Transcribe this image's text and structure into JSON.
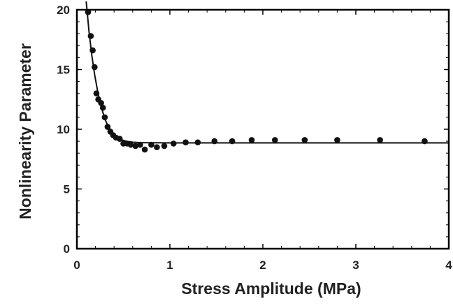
{
  "chart_data": {
    "type": "scatter",
    "title": "",
    "xlabel": "Stress Amplitude (MPa)",
    "ylabel": "Nonlinearity Parameter",
    "xlim": [
      0,
      4
    ],
    "ylim": [
      0,
      20
    ],
    "xticks": [
      0,
      1,
      2,
      3,
      4
    ],
    "yticks": [
      0,
      5,
      10,
      15,
      20
    ],
    "grid": false,
    "legend": "none",
    "colors": {
      "marker": "#111111",
      "line": "#111111",
      "axes": "#000000",
      "background": "#ffffff"
    },
    "series": [
      {
        "kind": "markers",
        "x": [
          0.12,
          0.15,
          0.17,
          0.19,
          0.21,
          0.23,
          0.26,
          0.28,
          0.3,
          0.33,
          0.36,
          0.39,
          0.42,
          0.46,
          0.5,
          0.54,
          0.58,
          0.63,
          0.68,
          0.73,
          0.8,
          0.86,
          0.94,
          1.04,
          1.17,
          1.3,
          1.48,
          1.67,
          1.88,
          2.13,
          2.45,
          2.8,
          3.26,
          3.74
        ],
        "y": [
          19.8,
          17.8,
          16.6,
          15.2,
          13.0,
          12.5,
          12.2,
          11.8,
          11.0,
          10.2,
          9.8,
          9.5,
          9.3,
          9.2,
          8.8,
          8.8,
          8.7,
          8.6,
          8.7,
          8.3,
          8.7,
          8.5,
          8.6,
          8.8,
          8.9,
          8.9,
          9.0,
          9.0,
          9.1,
          9.1,
          9.1,
          9.1,
          9.1,
          9.0
        ]
      },
      {
        "kind": "fit-line",
        "x": [
          0.1,
          0.13,
          0.16,
          0.19,
          0.22,
          0.25,
          0.28,
          0.31,
          0.34,
          0.37,
          0.4,
          0.44,
          0.48,
          0.52,
          0.56,
          0.6,
          0.7,
          0.8,
          1.0,
          1.5,
          2.0,
          2.5,
          3.0,
          3.5,
          4.0
        ],
        "y": [
          20.7,
          18.2,
          16.2,
          14.6,
          13.3,
          12.2,
          11.4,
          10.7,
          10.2,
          9.85,
          9.55,
          9.3,
          9.13,
          9.02,
          8.96,
          8.92,
          8.88,
          8.87,
          8.86,
          8.86,
          8.86,
          8.86,
          8.86,
          8.86,
          8.86
        ]
      }
    ]
  }
}
